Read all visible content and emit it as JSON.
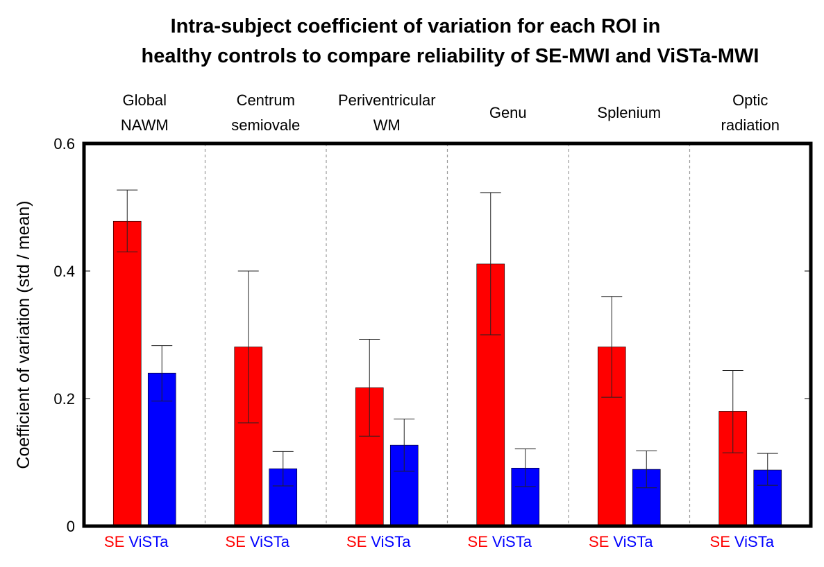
{
  "chart_data": {
    "type": "bar",
    "title_line1": "Intra-subject coefficient of variation for each ROI in",
    "title_line2": "healthy controls to compare reliability of SE-MWI and ViSTa-MWI",
    "ylabel": "Coefficient of variation (std / mean)",
    "ylim": [
      0,
      0.6
    ],
    "yticks": [
      "0",
      "0.2",
      "0.4",
      "0.6"
    ],
    "ytick_values": [
      0,
      0.2,
      0.4,
      0.6
    ],
    "grid": false,
    "categories": [
      [
        "Global",
        "NAWM"
      ],
      [
        "Centrum",
        "semiovale"
      ],
      [
        "Periventricular",
        "WM"
      ],
      [
        "Genu"
      ],
      [
        "Splenium"
      ],
      [
        "Optic",
        "radiation"
      ]
    ],
    "series": [
      {
        "name": "SE",
        "color": "#ff0000",
        "values": [
          0.478,
          0.281,
          0.217,
          0.411,
          0.281,
          0.18
        ],
        "error_low": [
          0.43,
          0.162,
          0.141,
          0.3,
          0.202,
          0.115
        ],
        "error_high": [
          0.527,
          0.4,
          0.293,
          0.523,
          0.36,
          0.244
        ]
      },
      {
        "name": "ViSTa",
        "color": "#0000ff",
        "values": [
          0.24,
          0.09,
          0.127,
          0.091,
          0.089,
          0.088
        ],
        "error_low": [
          0.196,
          0.063,
          0.086,
          0.062,
          0.06,
          0.064
        ],
        "error_high": [
          0.283,
          0.117,
          0.168,
          0.121,
          0.118,
          0.114
        ]
      }
    ]
  }
}
